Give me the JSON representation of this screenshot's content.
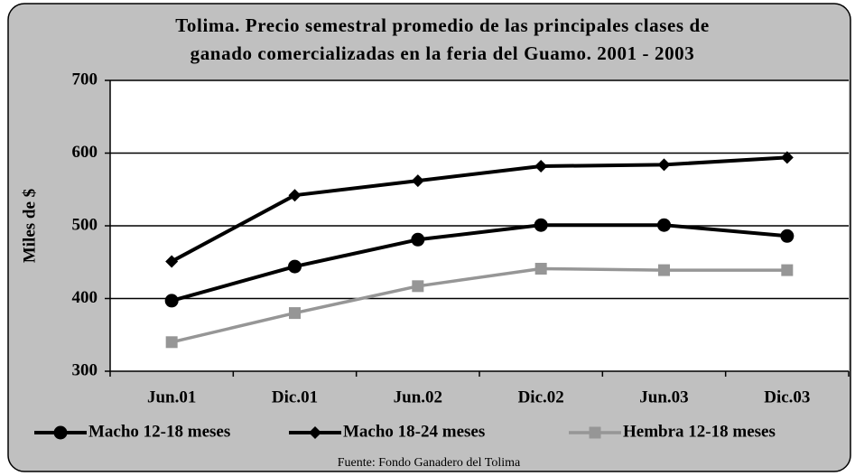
{
  "chart_data": {
    "type": "line",
    "title": [
      "Tolima. Precio semestral promedio de las principales clases de",
      "ganado comercializadas en la feria del Guamo. 2001 - 2003"
    ],
    "y_label": "Miles de $",
    "source": "Fuente: Fondo Ganadero del Tolima",
    "categories": [
      "Jun.01",
      "Dic.01",
      "Jun.02",
      "Dic.02",
      "Jun.03",
      "Dic.03"
    ],
    "series": [
      {
        "name": "Macho 12-18 meses",
        "color": "#000000",
        "marker": "circle",
        "values": [
          397,
          444,
          481,
          501,
          501,
          486
        ]
      },
      {
        "name": "Macho 18-24 meses",
        "color": "#000000",
        "marker": "diamond",
        "values": [
          451,
          542,
          562,
          582,
          584,
          594
        ]
      },
      {
        "name": "Hembra 12-18 meses",
        "color": "#969696",
        "marker": "square",
        "values": [
          340,
          380,
          417,
          441,
          439,
          439
        ]
      }
    ],
    "ylim": [
      300,
      700
    ],
    "yticks": [
      300,
      400,
      500,
      600,
      700
    ],
    "grid": true,
    "legend": "bottom"
  }
}
